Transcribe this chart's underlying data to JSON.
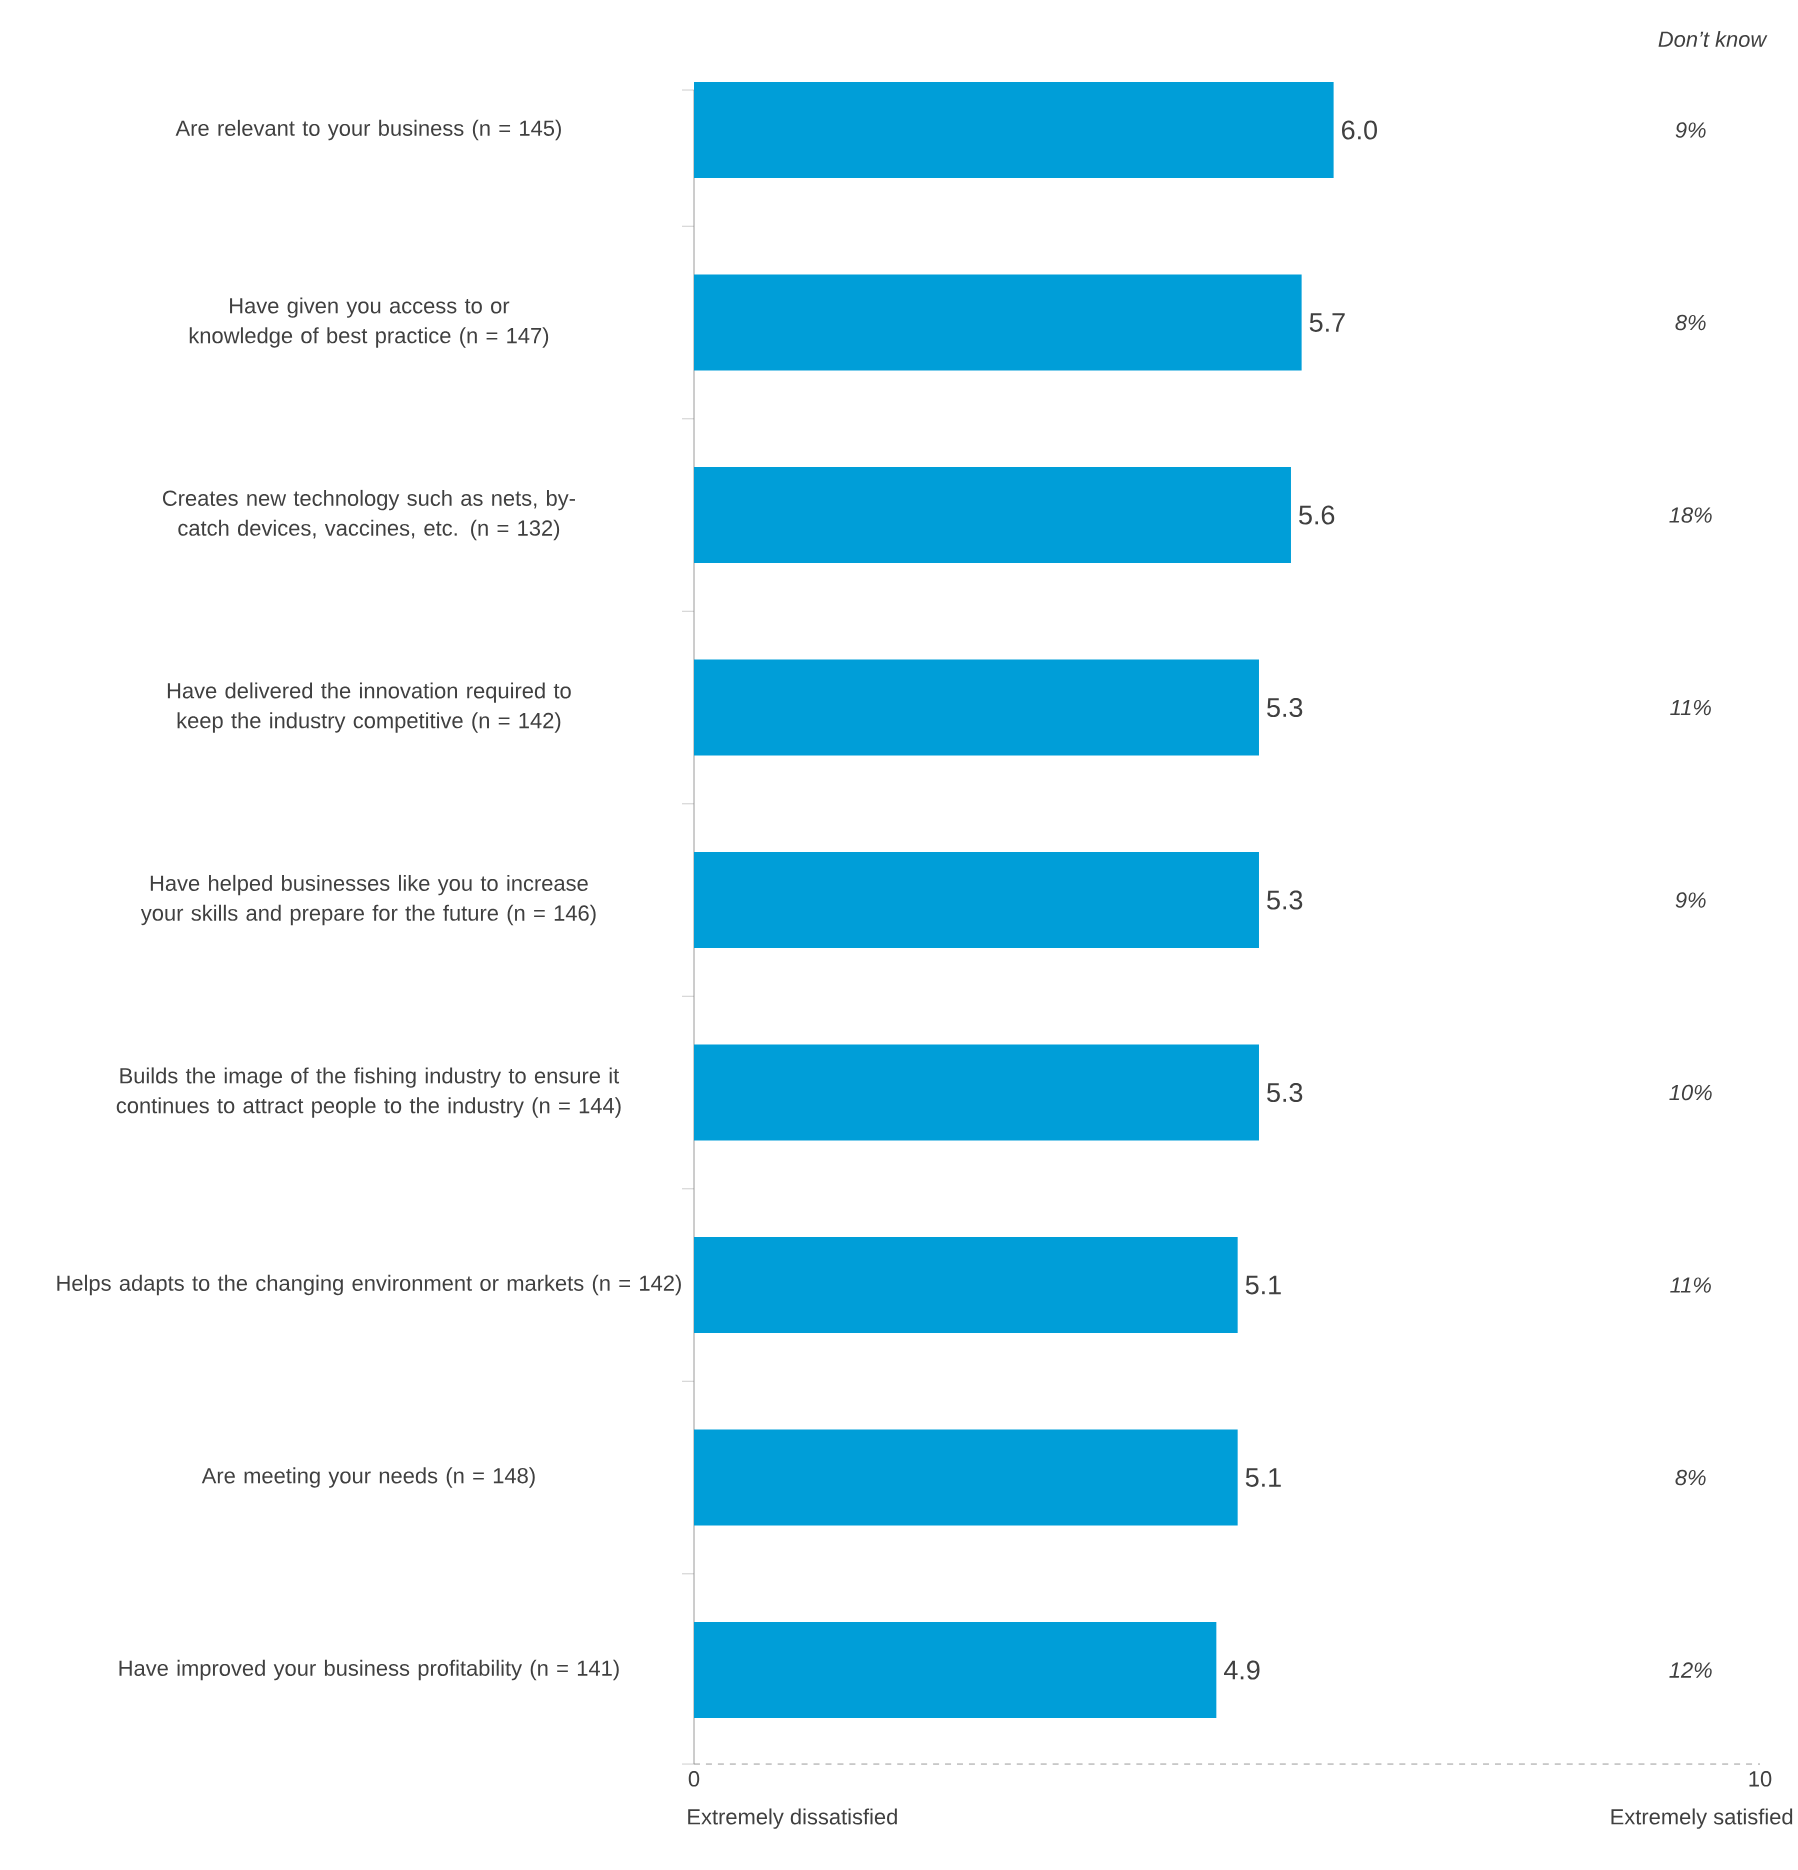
{
  "chart_data": {
    "type": "bar",
    "orientation": "horizontal",
    "categories": [
      "Are relevant to your business (n = 145)",
      "Have given you access to or knowledge of best practice (n = 147)",
      "Creates new technology such as nets, by-catch devices, vaccines, etc. (n = 132)",
      "Have delivered the innovation required to keep the industry competitive (n = 142)",
      "Have helped businesses like you to increase your skills and prepare for the future (n = 146)",
      "Builds the image of the fishing industry to ensure it continues to attract people to the industry (n = 144)",
      "Helps adapts to the changing environment or markets (n = 142)",
      "Are meeting your needs (n = 148)",
      "Have improved your business profitability (n = 141)"
    ],
    "values": [
      6.0,
      5.7,
      5.6,
      5.3,
      5.3,
      5.3,
      5.1,
      5.1,
      4.9
    ],
    "value_labels": [
      "6.0",
      "5.7",
      "5.6",
      "5.3",
      "5.3",
      "5.3",
      "5.1",
      "5.1",
      "4.9"
    ],
    "color": "#009ed8",
    "xlim": [
      0,
      10
    ],
    "xticks": [
      0,
      10
    ],
    "annotations": [
      "Don’t know",
      "9%",
      "8%",
      "18%",
      "11%",
      "9%",
      "10%",
      "11%",
      "8%",
      "12%",
      "Extremely dissatisfied",
      "Extremely satisfied"
    ],
    "grid": false
  }
}
